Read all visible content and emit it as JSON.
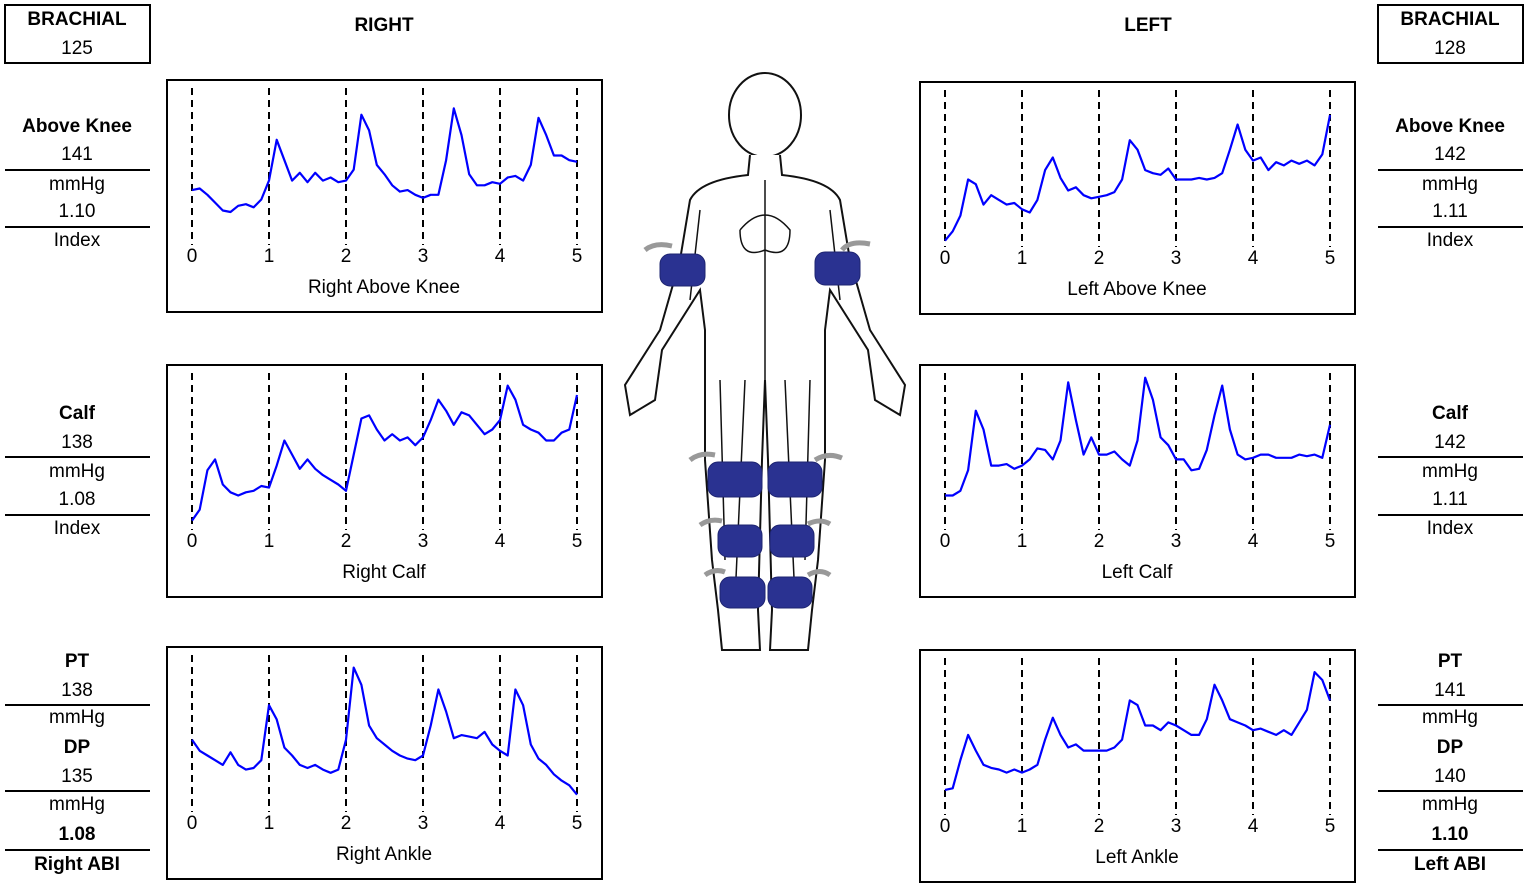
{
  "right_header": "RIGHT",
  "left_header": "LEFT",
  "right_panel": {
    "brachial_label": "BRACHIAL",
    "brachial": 125,
    "above_knee": {
      "label": "Above Knee",
      "pressure": 141,
      "unit": "mmHg",
      "index": "1.10",
      "index_label": "Index"
    },
    "calf": {
      "label": "Calf",
      "pressure": 138,
      "unit": "mmHg",
      "index": "1.08",
      "index_label": "Index"
    },
    "pt": {
      "label": "PT",
      "pressure": 138,
      "unit": "mmHg"
    },
    "dp": {
      "label": "DP",
      "pressure": 135,
      "unit": "mmHg"
    },
    "abi": "1.08",
    "abi_label": "Right ABI"
  },
  "left_panel": {
    "brachial_label": "BRACHIAL",
    "brachial": 128,
    "above_knee": {
      "label": "Above Knee",
      "pressure": 142,
      "unit": "mmHg",
      "index": "1.11",
      "index_label": "Index"
    },
    "calf": {
      "label": "Calf",
      "pressure": 142,
      "unit": "mmHg",
      "index": "1.11",
      "index_label": "Index"
    },
    "pt": {
      "label": "PT",
      "pressure": 141,
      "unit": "mmHg"
    },
    "dp": {
      "label": "DP",
      "pressure": 140,
      "unit": "mmHg"
    },
    "abi": "1.10",
    "abi_label": "Left ABI"
  },
  "chart_data": [
    {
      "type": "line",
      "title": "Right Above Knee",
      "color": "#0000ff",
      "xlim": [
        0,
        5
      ],
      "ylim": [
        0,
        100
      ],
      "xticks": [
        0,
        1,
        2,
        3,
        4,
        5
      ],
      "grid": true,
      "x": [
        0,
        0.1,
        0.2,
        0.3,
        0.4,
        0.5,
        0.6,
        0.7,
        0.8,
        0.9,
        1,
        1.1,
        1.2,
        1.3,
        1.4,
        1.5,
        1.6,
        1.7,
        1.8,
        1.9,
        2,
        2.1,
        2.2,
        2.3,
        2.4,
        2.5,
        2.6,
        2.7,
        2.8,
        2.9,
        3,
        3.1,
        3.2,
        3.3,
        3.4,
        3.5,
        3.6,
        3.7,
        3.8,
        3.9,
        4,
        4.1,
        4.2,
        4.3,
        4.4,
        4.5,
        4.6,
        4.7,
        4.8,
        4.9,
        5
      ],
      "values": [
        35,
        36,
        32,
        27,
        22,
        21,
        25,
        26,
        24,
        29,
        41,
        67,
        54,
        41,
        46,
        40,
        46,
        41,
        43,
        40,
        41,
        48,
        83,
        73,
        51,
        45,
        38,
        34,
        35,
        32,
        30,
        32,
        32,
        54,
        87,
        70,
        45,
        38,
        38,
        40,
        39,
        43,
        44,
        41,
        51,
        81,
        70,
        57,
        57,
        54,
        53
      ]
    },
    {
      "type": "line",
      "title": "Right Calf",
      "color": "#0000ff",
      "xlim": [
        0,
        5
      ],
      "ylim": [
        0,
        100
      ],
      "xticks": [
        0,
        1,
        2,
        3,
        4,
        5
      ],
      "grid": true,
      "x": [
        0,
        0.1,
        0.2,
        0.3,
        0.4,
        0.5,
        0.6,
        0.7,
        0.8,
        0.9,
        1,
        1.1,
        1.2,
        1.3,
        1.4,
        1.5,
        1.6,
        1.7,
        1.8,
        1.9,
        2,
        2.1,
        2.2,
        2.3,
        2.4,
        2.5,
        2.6,
        2.7,
        2.8,
        2.9,
        3,
        3.1,
        3.2,
        3.3,
        3.4,
        3.5,
        3.6,
        3.7,
        3.8,
        3.9,
        4,
        4.1,
        4.2,
        4.3,
        4.4,
        4.5,
        4.6,
        4.7,
        4.8,
        4.9,
        5
      ],
      "values": [
        6,
        13,
        38,
        45,
        29,
        24,
        22,
        24,
        25,
        28,
        27,
        41,
        57,
        48,
        39,
        45,
        39,
        35,
        32,
        29,
        25,
        48,
        71,
        73,
        64,
        57,
        61,
        57,
        59,
        54,
        59,
        70,
        83,
        76,
        67,
        75,
        73,
        67,
        61,
        64,
        70,
        92,
        83,
        67,
        64,
        62,
        57,
        57,
        62,
        64,
        86
      ]
    },
    {
      "type": "line",
      "title": "Right Ankle",
      "color": "#0000ff",
      "xlim": [
        0,
        5
      ],
      "ylim": [
        0,
        100
      ],
      "xticks": [
        0,
        1,
        2,
        3,
        4,
        5
      ],
      "grid": true,
      "x": [
        0,
        0.1,
        0.2,
        0.3,
        0.4,
        0.5,
        0.6,
        0.7,
        0.8,
        0.9,
        1,
        1.1,
        1.2,
        1.3,
        1.4,
        1.5,
        1.6,
        1.7,
        1.8,
        1.9,
        2,
        2.1,
        2.2,
        2.3,
        2.4,
        2.5,
        2.6,
        2.7,
        2.8,
        2.9,
        3,
        3.1,
        3.2,
        3.3,
        3.4,
        3.5,
        3.6,
        3.7,
        3.8,
        3.9,
        4,
        4.1,
        4.2,
        4.3,
        4.4,
        4.5,
        4.6,
        4.7,
        4.8,
        4.9,
        5
      ],
      "values": [
        46,
        39,
        36,
        33,
        30,
        38,
        30,
        27,
        28,
        33,
        68,
        59,
        41,
        36,
        30,
        28,
        30,
        27,
        25,
        27,
        46,
        92,
        81,
        55,
        47,
        43,
        39,
        36,
        34,
        33,
        36,
        55,
        78,
        64,
        47,
        49,
        48,
        47,
        51,
        43,
        39,
        36,
        78,
        68,
        43,
        34,
        30,
        24,
        20,
        17,
        11
      ]
    },
    {
      "type": "line",
      "title": "Left Above Knee",
      "color": "#0000ff",
      "xlim": [
        0,
        5
      ],
      "ylim": [
        0,
        100
      ],
      "xticks": [
        0,
        1,
        2,
        3,
        4,
        5
      ],
      "grid": true,
      "x": [
        0,
        0.1,
        0.2,
        0.3,
        0.4,
        0.5,
        0.6,
        0.7,
        0.8,
        0.9,
        1,
        1.1,
        1.2,
        1.3,
        1.4,
        1.5,
        1.6,
        1.7,
        1.8,
        1.9,
        2,
        2.1,
        2.2,
        2.3,
        2.4,
        2.5,
        2.6,
        2.7,
        2.8,
        2.9,
        3,
        3.1,
        3.2,
        3.3,
        3.4,
        3.5,
        3.6,
        3.7,
        3.8,
        3.9,
        4,
        4.1,
        4.2,
        4.3,
        4.4,
        4.5,
        4.6,
        4.7,
        4.8,
        4.9,
        5
      ],
      "values": [
        4,
        10,
        20,
        43,
        40,
        27,
        33,
        30,
        27,
        28,
        24,
        22,
        30,
        49,
        57,
        44,
        36,
        38,
        33,
        31,
        32,
        33,
        35,
        43,
        68,
        62,
        49,
        47,
        46,
        50,
        43,
        43,
        43,
        44,
        43,
        44,
        47,
        62,
        78,
        62,
        55,
        57,
        49,
        54,
        52,
        55,
        53,
        55,
        52,
        59,
        84
      ]
    },
    {
      "type": "line",
      "title": "Left Calf",
      "color": "#0000ff",
      "xlim": [
        0,
        5
      ],
      "ylim": [
        0,
        100
      ],
      "xticks": [
        0,
        1,
        2,
        3,
        4,
        5
      ],
      "grid": true,
      "x": [
        0,
        0.1,
        0.2,
        0.3,
        0.4,
        0.5,
        0.6,
        0.7,
        0.8,
        0.9,
        1,
        1.1,
        1.2,
        1.3,
        1.4,
        1.5,
        1.6,
        1.7,
        1.8,
        1.9,
        2,
        2.1,
        2.2,
        2.3,
        2.4,
        2.5,
        2.6,
        2.7,
        2.8,
        2.9,
        3,
        3.1,
        3.2,
        3.3,
        3.4,
        3.5,
        3.6,
        3.7,
        3.8,
        3.9,
        4,
        4.1,
        4.2,
        4.3,
        4.4,
        4.5,
        4.6,
        4.7,
        4.8,
        4.9,
        5
      ],
      "values": [
        22,
        22,
        25,
        38,
        76,
        64,
        41,
        41,
        42,
        39,
        41,
        45,
        52,
        51,
        45,
        57,
        94,
        70,
        48,
        59,
        48,
        48,
        50,
        45,
        41,
        57,
        97,
        83,
        59,
        54,
        45,
        45,
        38,
        39,
        51,
        73,
        92,
        64,
        48,
        45,
        46,
        48,
        48,
        46,
        46,
        46,
        48,
        47,
        48,
        46,
        67
      ]
    },
    {
      "type": "line",
      "title": "Left Ankle",
      "color": "#0000ff",
      "xlim": [
        0,
        5
      ],
      "ylim": [
        0,
        100
      ],
      "xticks": [
        0,
        1,
        2,
        3,
        4,
        5
      ],
      "grid": true,
      "x": [
        0,
        0.1,
        0.2,
        0.3,
        0.4,
        0.5,
        0.6,
        0.7,
        0.8,
        0.9,
        1,
        1.1,
        1.2,
        1.3,
        1.4,
        1.5,
        1.6,
        1.7,
        1.8,
        1.9,
        2,
        2.1,
        2.2,
        2.3,
        2.4,
        2.5,
        2.6,
        2.7,
        2.8,
        2.9,
        3,
        3.1,
        3.2,
        3.3,
        3.4,
        3.5,
        3.6,
        3.7,
        3.8,
        3.9,
        4,
        4.1,
        4.2,
        4.3,
        4.4,
        4.5,
        4.6,
        4.7,
        4.8,
        4.9,
        5
      ],
      "values": [
        16,
        17,
        35,
        51,
        41,
        32,
        30,
        29,
        27,
        29,
        27,
        29,
        32,
        48,
        62,
        51,
        43,
        45,
        41,
        41,
        41,
        41,
        43,
        48,
        73,
        70,
        57,
        57,
        54,
        59,
        57,
        54,
        51,
        51,
        61,
        83,
        73,
        61,
        59,
        57,
        54,
        55,
        53,
        51,
        54,
        51,
        59,
        67,
        91,
        86,
        73
      ]
    }
  ]
}
